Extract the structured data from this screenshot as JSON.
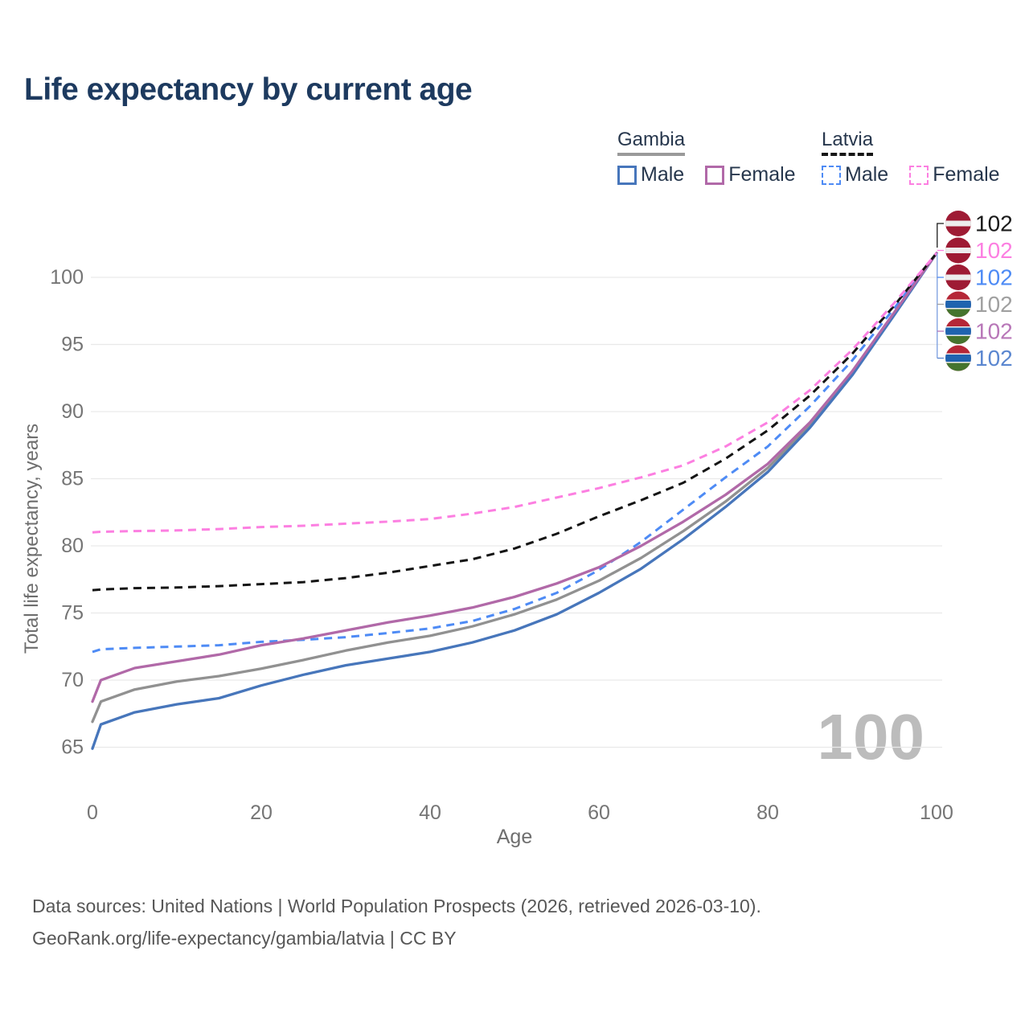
{
  "title": "Life expectancy by current age",
  "legend": {
    "groups": [
      {
        "label": "Gambia",
        "style": "solid",
        "items": [
          {
            "label": "Male"
          },
          {
            "label": "Female"
          }
        ]
      },
      {
        "label": "Latvia",
        "style": "dashed",
        "items": [
          {
            "label": "Male"
          },
          {
            "label": "Female"
          }
        ]
      }
    ]
  },
  "watermark": "100",
  "footer": {
    "line1": "Data sources: United Nations | World Population Prospects (2026, retrieved 2026-03-10).",
    "line2": "GeoRank.org/life-expectancy/gambia/latvia | CC BY"
  },
  "colors": {
    "gambia_male": "#4776bb",
    "gambia_both": "#919191",
    "gambia_female": "#b169a8",
    "latvia_male": "#4e8bf5",
    "latvia_both": "#141414",
    "latvia_female": "#fc7fe1",
    "grid": "#e9e9e9",
    "tick_text": "#757575",
    "flag_latvia_red": "#9e1b34",
    "flag_white": "#ededed",
    "flag_gambia_red": "#b52737",
    "flag_gambia_blue": "#1f63af",
    "flag_gambia_green": "#45742e",
    "title_text": "#1d3a5f",
    "watermark_text": "#bcbcbc"
  },
  "chart_data": {
    "type": "line",
    "xlabel": "Age",
    "ylabel": "Total life expectancy, years",
    "x_ticks": [
      0,
      20,
      40,
      60,
      80,
      100
    ],
    "y_ticks": [
      65,
      70,
      75,
      80,
      85,
      90,
      95,
      100
    ],
    "xlim": [
      0,
      100
    ],
    "ylim": [
      63.5,
      103
    ],
    "grid": true,
    "x": [
      0,
      1,
      5,
      10,
      15,
      20,
      25,
      30,
      35,
      40,
      45,
      50,
      55,
      60,
      65,
      70,
      75,
      80,
      85,
      90,
      95,
      100
    ],
    "series": [
      {
        "id": "gambia-both",
        "name": "Gambia Both",
        "color": "#919191",
        "dash": false,
        "values": [
          66.9,
          68.4,
          69.3,
          69.9,
          70.3,
          70.85,
          71.5,
          72.2,
          72.8,
          73.3,
          74.0,
          74.9,
          76.0,
          77.4,
          79.1,
          81.1,
          83.3,
          85.8,
          89.0,
          92.8,
          97.3,
          101.8
        ]
      },
      {
        "id": "gambia-male",
        "name": "Gambia Male",
        "color": "#4776bb",
        "dash": false,
        "values": [
          64.9,
          66.7,
          67.6,
          68.2,
          68.65,
          69.6,
          70.4,
          71.1,
          71.6,
          72.1,
          72.8,
          73.7,
          74.9,
          76.5,
          78.3,
          80.5,
          82.9,
          85.5,
          88.8,
          92.7,
          97.2,
          101.8
        ]
      },
      {
        "id": "latvia-male",
        "name": "Latvia Male",
        "color": "#4e8bf5",
        "dash": true,
        "values": [
          72.1,
          72.3,
          72.4,
          72.5,
          72.6,
          72.85,
          73.0,
          73.2,
          73.5,
          73.85,
          74.4,
          75.3,
          76.5,
          78.2,
          80.3,
          82.7,
          85.1,
          87.4,
          90.4,
          93.8,
          97.7,
          101.8
        ]
      },
      {
        "id": "gambia-female",
        "name": "Gambia Female",
        "color": "#b169a8",
        "dash": false,
        "values": [
          68.4,
          70.0,
          70.9,
          71.4,
          71.9,
          72.6,
          73.1,
          73.7,
          74.3,
          74.8,
          75.4,
          76.2,
          77.2,
          78.4,
          80.0,
          81.8,
          83.8,
          86.1,
          89.2,
          93.0,
          97.4,
          101.8
        ]
      },
      {
        "id": "latvia-both",
        "name": "Latvia Both",
        "color": "#141414",
        "dash": true,
        "values": [
          76.7,
          76.75,
          76.85,
          76.9,
          77.0,
          77.15,
          77.3,
          77.6,
          78.0,
          78.5,
          79.0,
          79.8,
          80.9,
          82.2,
          83.4,
          84.7,
          86.5,
          88.6,
          91.2,
          94.3,
          97.9,
          101.8
        ]
      },
      {
        "id": "latvia-female",
        "name": "Latvia Female",
        "color": "#fc7fe1",
        "dash": true,
        "values": [
          81.0,
          81.05,
          81.1,
          81.15,
          81.25,
          81.4,
          81.5,
          81.65,
          81.8,
          82.0,
          82.4,
          82.9,
          83.6,
          84.3,
          85.1,
          86.0,
          87.4,
          89.2,
          91.6,
          94.6,
          98.1,
          101.8
        ]
      }
    ],
    "end_labels": [
      {
        "flag": "latvia",
        "series": "Latvia Both",
        "text": "102",
        "color": "#1a1a1a"
      },
      {
        "flag": "latvia",
        "series": "Latvia Female",
        "text": "102",
        "color": "#fc7fe1"
      },
      {
        "flag": "latvia",
        "series": "Latvia Male",
        "text": "102",
        "color": "#4e8bf5"
      },
      {
        "flag": "gambia",
        "series": "Gambia Both",
        "text": "102",
        "color": "#a0a0a0"
      },
      {
        "flag": "gambia",
        "series": "Gambia Female",
        "text": "102",
        "color": "#b877b8"
      },
      {
        "flag": "gambia",
        "series": "Gambia Male",
        "text": "102",
        "color": "#5b87d0"
      }
    ]
  }
}
